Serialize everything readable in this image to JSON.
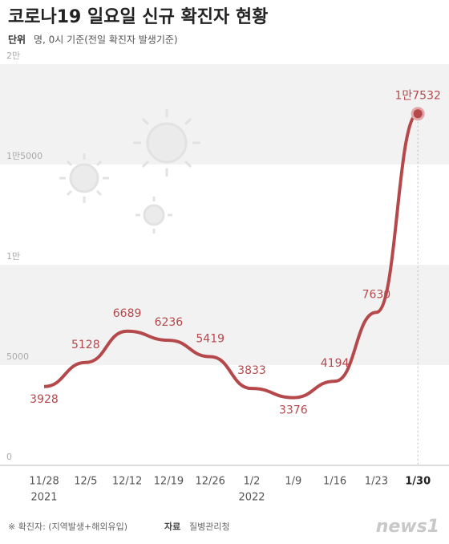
{
  "chart_data": {
    "type": "line",
    "title": "코로나19 일요일 신규 확진자 현황",
    "unit_label": "단위",
    "subtitle": "명, 0시 기준(전일 확진자 발생기준)",
    "categories": [
      "11/28",
      "12/5",
      "12/12",
      "12/19",
      "12/26",
      "1/2",
      "1/9",
      "1/16",
      "1/23",
      "1/30"
    ],
    "year_labels": [
      "2021",
      null,
      null,
      null,
      null,
      "2022",
      null,
      null,
      null,
      null
    ],
    "values": [
      3928,
      5128,
      6689,
      6236,
      5419,
      3833,
      3376,
      4194,
      7630,
      17532
    ],
    "value_labels": [
      "3928",
      "5128",
      "6689",
      "6236",
      "5419",
      "3833",
      "3376",
      "4194",
      "7630",
      "1만7532"
    ],
    "color": "#b5484b",
    "ylim": [
      0,
      20000
    ],
    "yticks": [
      0,
      5000,
      {
        "value": 10000,
        "label": "1만"
      },
      {
        "value": 15000,
        "label": "1만5000"
      },
      {
        "value": 20000,
        "label": "2만"
      }
    ],
    "grid": true,
    "footnote": "※ 확진자: (지역발생+해외유입)",
    "source_label": "자료",
    "source": "질병관리청",
    "logo": "news1"
  }
}
